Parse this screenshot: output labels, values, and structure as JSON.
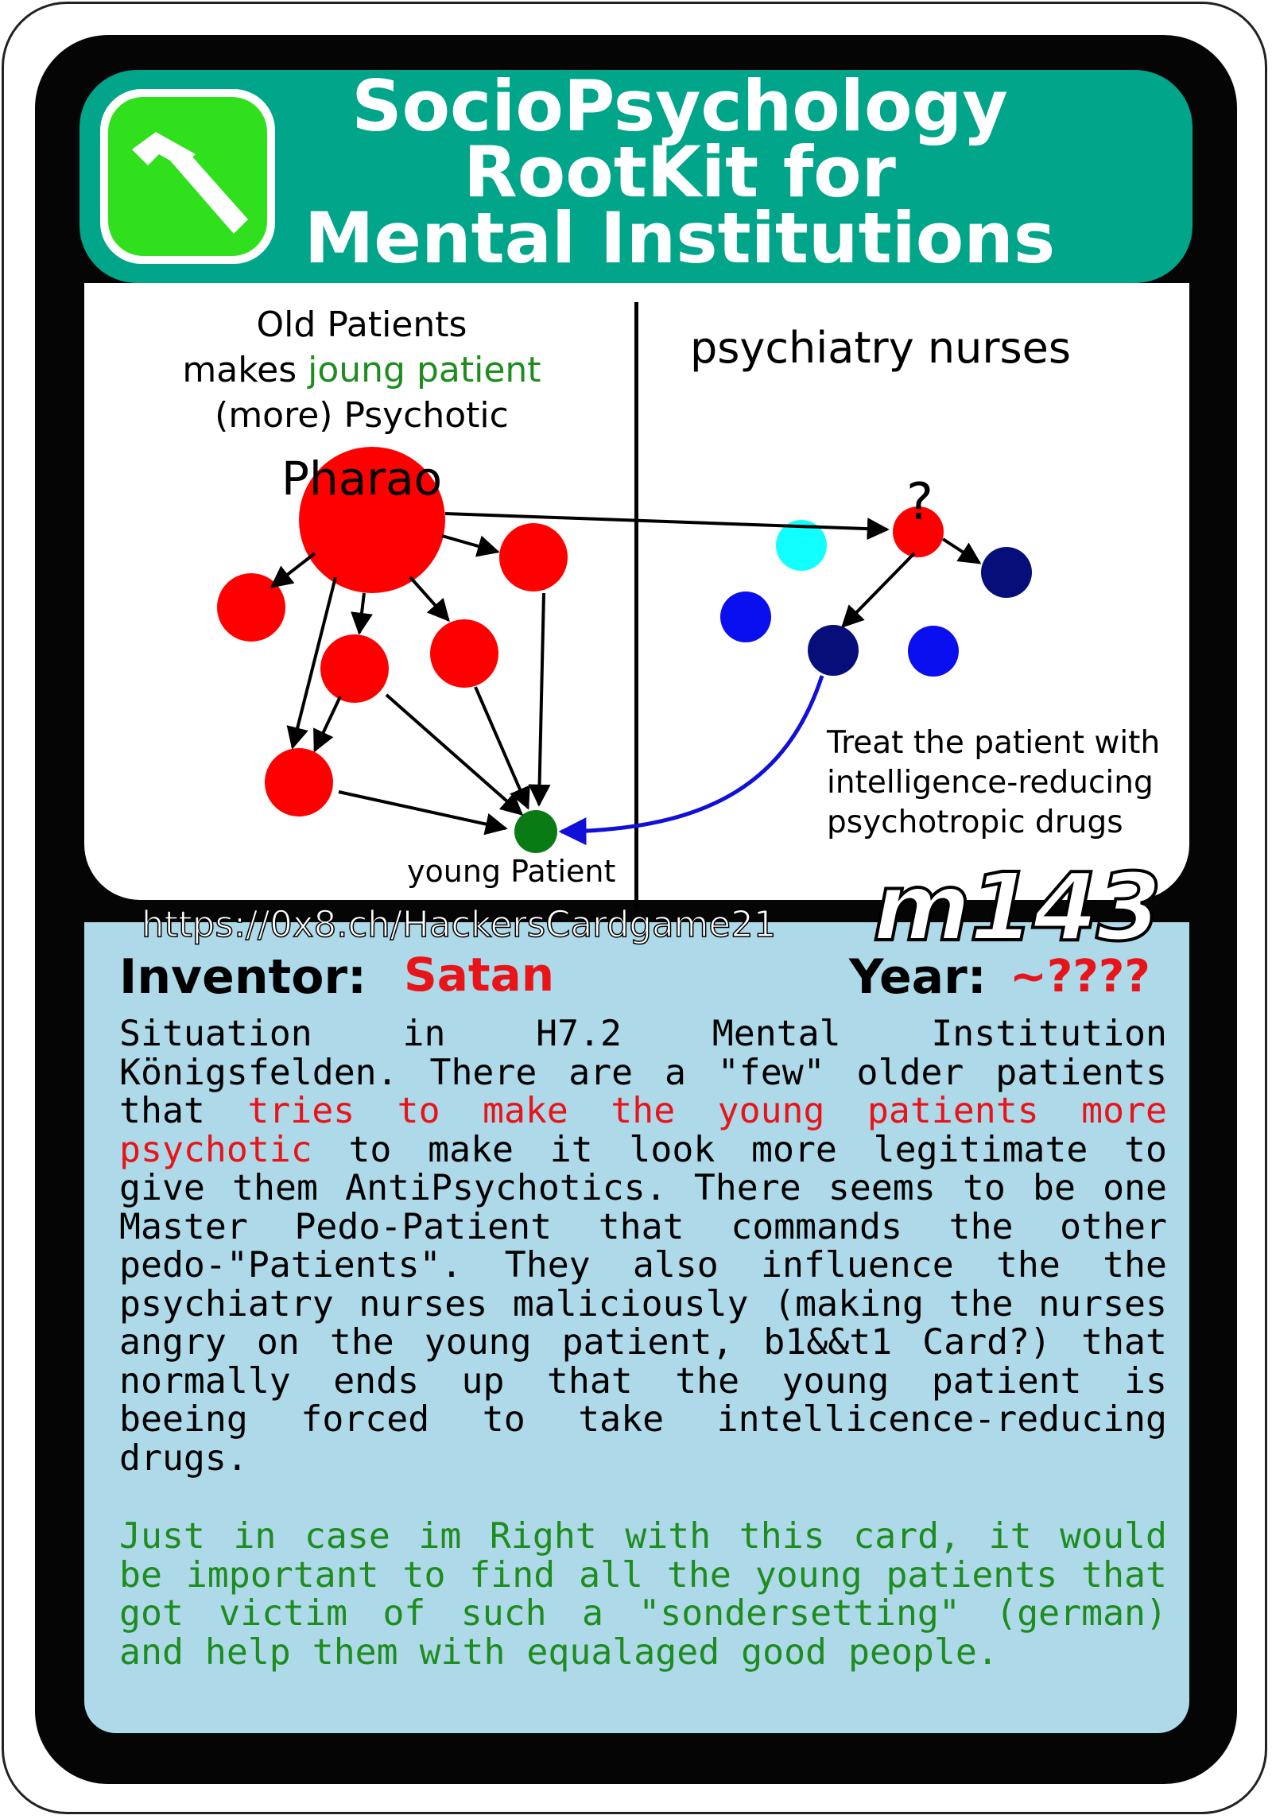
{
  "card": {
    "title_lines": [
      "SocioPsychology",
      "RootKit for",
      "Mental Institutions"
    ],
    "logo_icon": "hammer-icon",
    "card_id": "m143",
    "url": "https://0x8.ch/HackersCardgame21",
    "colors": {
      "header": "#00a58a",
      "logo": "#30e01c",
      "description_bg": "#add9e8",
      "red": "#e8141a",
      "green": "#1e8c1e",
      "old_patient": "#ff0000",
      "young_patient": "#0a7a14",
      "nurse_dark": "#060e7a",
      "nurse_blue": "#0a0ff0",
      "nurse_cyan": "#12ffff"
    }
  },
  "diagram": {
    "left_heading_line1": "Old Patients",
    "left_heading_line2_prefix": "makes ",
    "left_heading_line2_highlight": "joung patient",
    "left_heading_line3": "(more) Psychotic",
    "pharao_label": "Pharao",
    "young_patient_label": "young Patient",
    "right_heading": "psychiatry nurses",
    "question_mark": "?",
    "treat_line1": "Treat the patient with",
    "treat_line2": "intelligence-reducing",
    "treat_line3": "psychotropic drugs"
  },
  "info": {
    "inventor_label": "Inventor:",
    "inventor_value": "Satan",
    "year_label": "Year:",
    "year_value": "~????"
  },
  "description": {
    "part1": "Situation in H7.2 Mental Institution Königsfelden. There are a \"few\" older patients that ",
    "part2_red": "tries to make the young patients more psychotic",
    "part3": " to make it look more legitimate to give them AntiPsychotics. There seems to be one Master Pedo-Patient that commands the other pedo-\"Patients\". They also influence the the psychiatry nurses maliciously (making the nurses angry on the young patient, b1&&t1 Card?) that normally ends up that the young patient is beeing forced to take intellicence-reducing drugs.",
    "green_paragraph": "Just in case im Right with this card, it would be important to find all the young patients that got victim of such a \"sondersetting\" (german) and help them with equalaged good people."
  }
}
